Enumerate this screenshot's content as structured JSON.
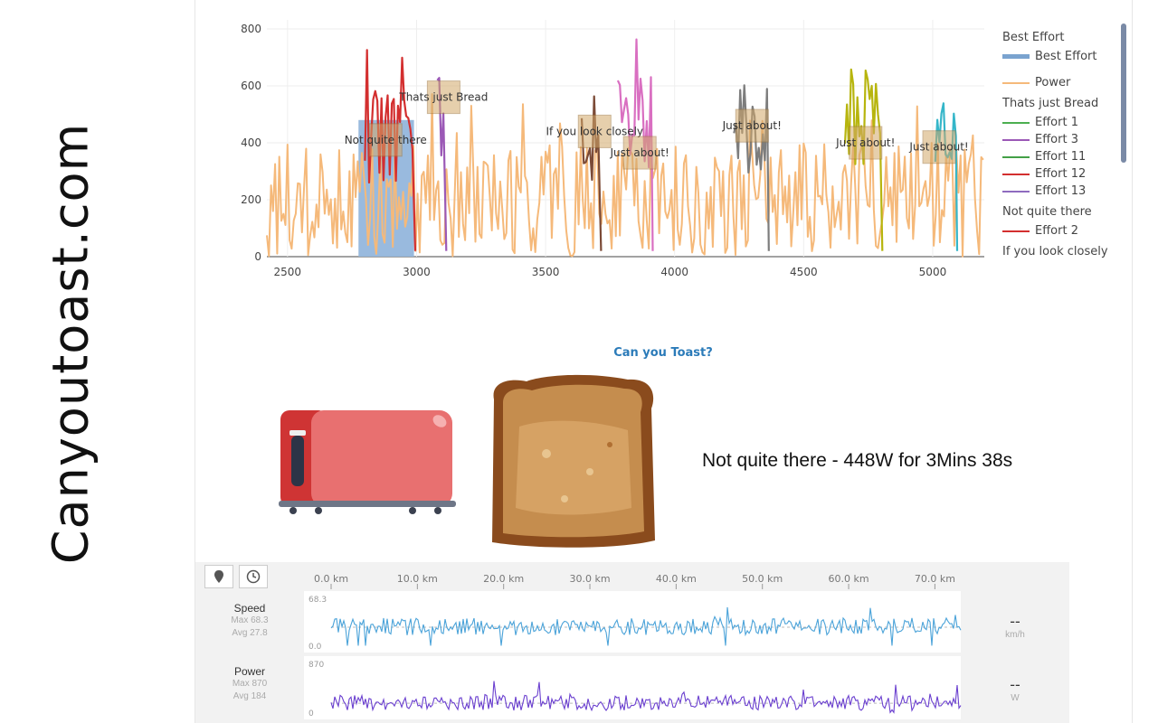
{
  "site": {
    "title": "Canyoutoast.com"
  },
  "chart_data": {
    "type": "line",
    "x_range": [
      2420,
      5200
    ],
    "y_range": [
      0,
      830
    ],
    "x_ticks": [
      2500,
      3000,
      3500,
      4000,
      4500,
      5000
    ],
    "y_ticks": [
      0,
      200,
      400,
      600,
      800
    ],
    "colors": {
      "power": "#f5b97a",
      "best_effort_fill": "#93b6dc",
      "effort_1": "#4caf50",
      "effort_3": "#9b59b6",
      "effort_2": "#d32f2f",
      "brown": "#7b4a36",
      "pink": "#d96fc1",
      "gray": "#7d7d7d",
      "olive": "#b7b50e",
      "teal": "#35b6c9"
    },
    "best_effort": {
      "x_start": 2775,
      "x_end": 2990,
      "value": 480
    },
    "annotations": [
      {
        "text": "Not quite there",
        "x": 2880,
        "y": 410
      },
      {
        "text": "Thats just Bread",
        "x": 3105,
        "y": 560
      },
      {
        "text": "If you look closely",
        "x": 3690,
        "y": 440
      },
      {
        "text": "Just about!",
        "x": 3865,
        "y": 365
      },
      {
        "text": "Just about!",
        "x": 4300,
        "y": 460
      },
      {
        "text": "Just about!",
        "x": 4740,
        "y": 400
      },
      {
        "text": "Just about!",
        "x": 5025,
        "y": 385
      }
    ],
    "series": [
      {
        "name": "Power",
        "color_key": "power",
        "x_start": 2420,
        "x_end": 5200
      },
      {
        "name": "Effort 2",
        "color_key": "effort_2",
        "x_start": 2800,
        "x_end": 2990
      },
      {
        "name": "Effort 13",
        "color_key": "effort_3",
        "x_start": 3080,
        "x_end": 3110
      },
      {
        "name": "Effort",
        "color_key": "brown",
        "x_start": 3640,
        "x_end": 3710
      },
      {
        "name": "Effort",
        "color_key": "pink",
        "x_start": 3780,
        "x_end": 3910
      },
      {
        "name": "Effort",
        "color_key": "gray",
        "x_start": 4230,
        "x_end": 4360
      },
      {
        "name": "Effort",
        "color_key": "olive",
        "x_start": 4660,
        "x_end": 4800
      },
      {
        "name": "Effort",
        "color_key": "teal",
        "x_start": 5010,
        "x_end": 5090
      }
    ]
  },
  "legend": {
    "groups": [
      {
        "title": "Best Effort",
        "items": [
          {
            "label": "Best Effort",
            "color": "#7aa3cf",
            "thick": true
          }
        ]
      },
      {
        "title": "",
        "items": [
          {
            "label": "Power",
            "color": "#f5b97a",
            "thick": false
          }
        ]
      },
      {
        "title": "Thats just Bread",
        "items": [
          {
            "label": "Effort 1",
            "color": "#4caf50",
            "thick": false
          },
          {
            "label": "Effort 3",
            "color": "#9b59b6",
            "thick": false
          },
          {
            "label": "Effort 11",
            "color": "#43a047",
            "thick": false
          },
          {
            "label": "Effort 12",
            "color": "#d32f2f",
            "thick": false
          },
          {
            "label": "Effort 13",
            "color": "#8e6bbf",
            "thick": false
          }
        ]
      },
      {
        "title": "Not quite there",
        "items": [
          {
            "label": "Effort 2",
            "color": "#d32f2f",
            "thick": false
          }
        ]
      },
      {
        "title": "If you look closely",
        "items": []
      }
    ]
  },
  "toast": {
    "title": "Can you Toast?",
    "verdict": "Not quite there - 448W for 3Mins 38s"
  },
  "strava": {
    "distance_ticks": [
      "0.0 km",
      "10.0 km",
      "20.0 km",
      "30.0 km",
      "40.0 km",
      "50.0 km",
      "60.0 km",
      "70.0 km"
    ],
    "speed": {
      "name": "Speed",
      "max": "Max 68.3",
      "avg": "Avg 27.8",
      "top": "68.3",
      "bottom": "0.0",
      "value": "--",
      "unit": "km/h",
      "color": "#4ba3d9",
      "max_value": 68.3,
      "avg_value": 27.8
    },
    "power": {
      "name": "Power",
      "max": "Max 870",
      "avg": "Avg 184",
      "top": "870",
      "bottom": "0",
      "value": "--",
      "unit": "W",
      "color": "#6a3fcf",
      "max_value": 870,
      "avg_value": 184
    }
  }
}
